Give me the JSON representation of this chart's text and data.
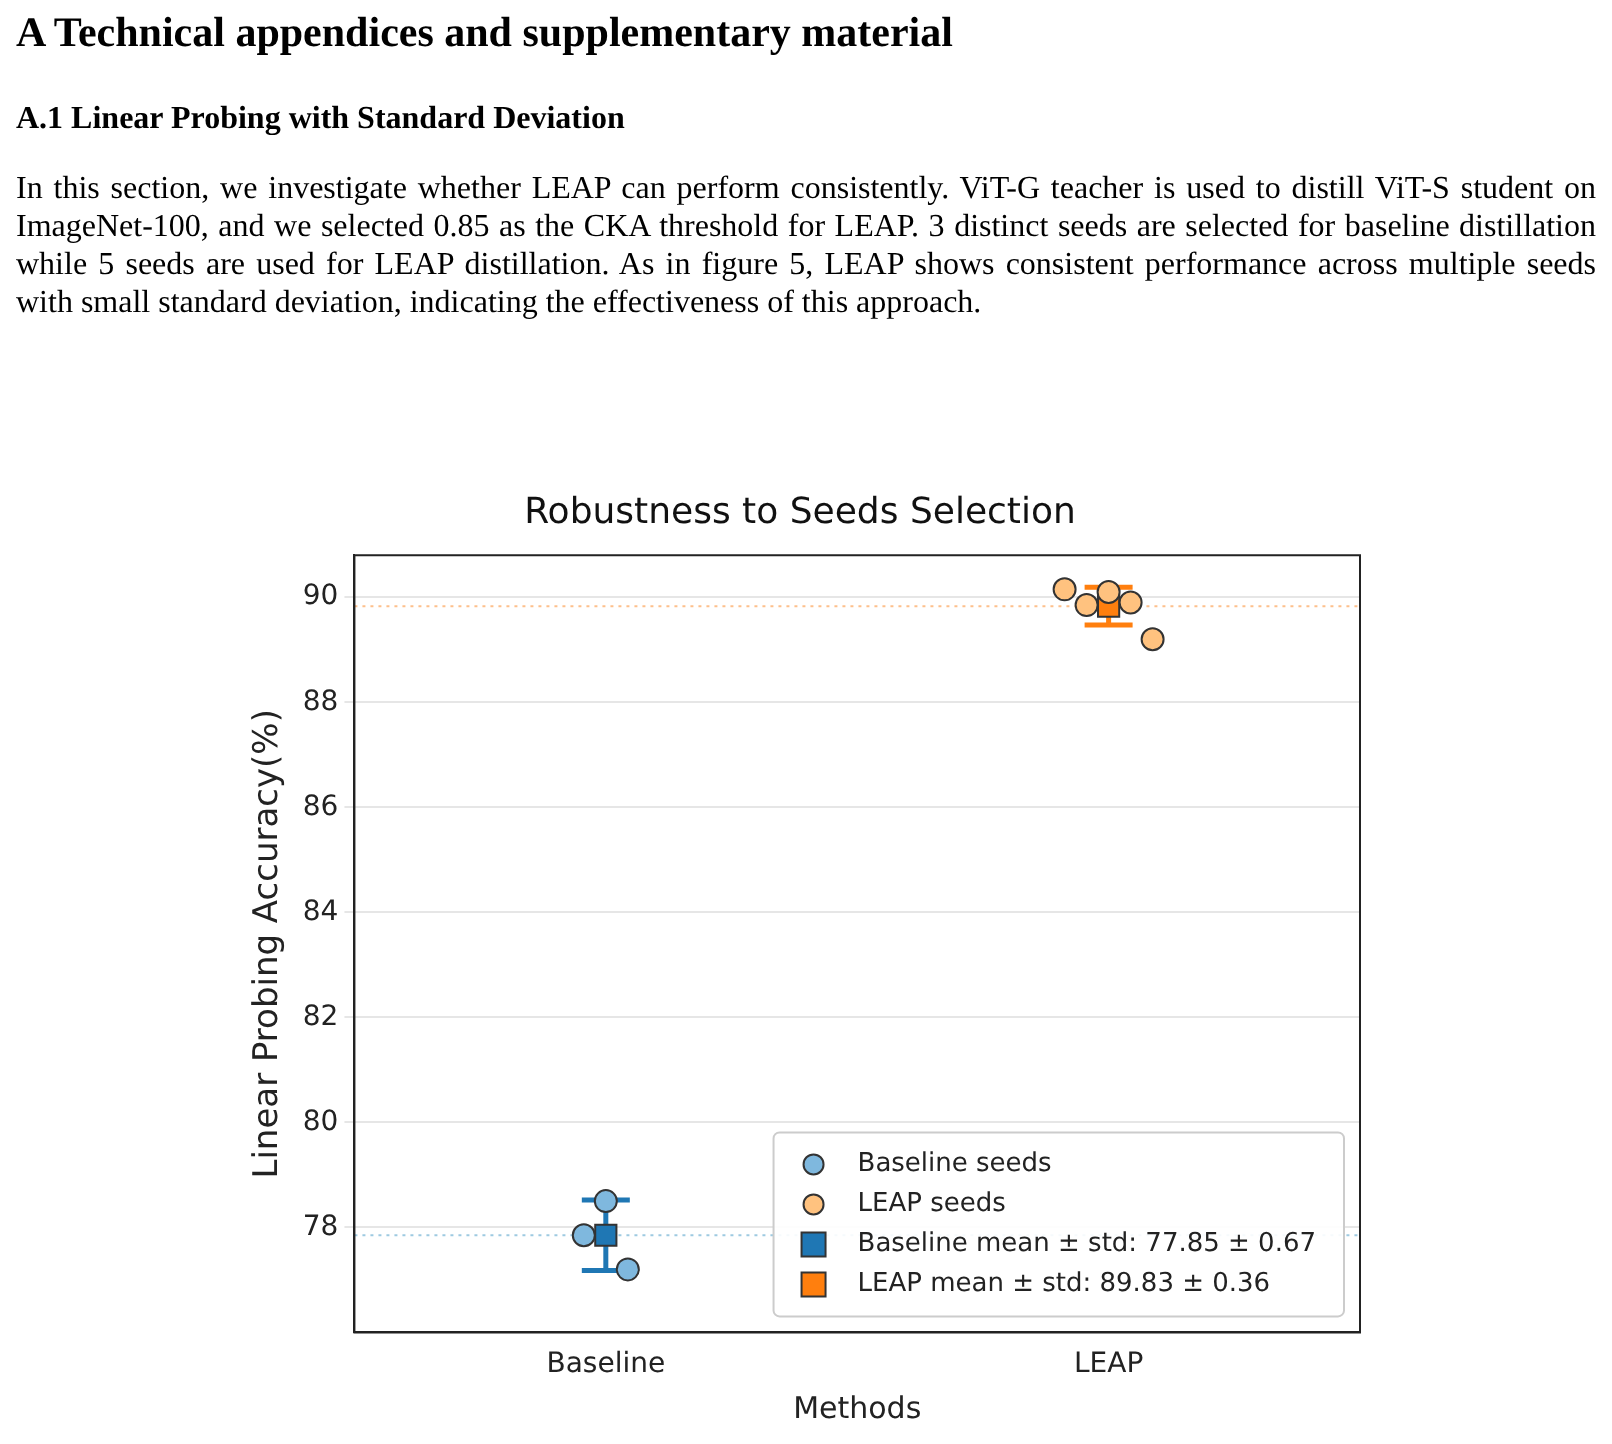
{
  "chart_data": {
    "type": "scatter",
    "title": "Robustness to Seeds Selection",
    "xlabel": "Methods",
    "ylabel": "Linear Probing Accuracy(%)",
    "annotations": [
      "A   Technical appendices and supplementary material",
      "A.1   Linear Probing with Standard Deviation",
      "In this section, we investigate whether LEAP can perform consistently. ViT-G teacher is used to distill ViT-S student on ImageNet-100, and we selected 0.85 as the CKA threshold for LEAP. 3 distinct seeds are selected for baseline distillation while 5 seeds are used for LEAP distillation. As in figure 5, LEAP shows consistent performance across multiple seeds with small standard deviation, indicating the effectiveness of this approach."
    ],
    "categories": [
      "Baseline",
      "LEAP"
    ],
    "ylim": [
      76,
      90.8
    ],
    "yticks": [
      78,
      80,
      82,
      84,
      86,
      88,
      90
    ],
    "grid": "y",
    "legend": "bottom right",
    "series": [
      {
        "name": "Baseline seeds",
        "color": "#7fb8de",
        "marker": "circle",
        "x": [
          "Baseline",
          "Baseline",
          "Baseline"
        ],
        "values": [
          77.85,
          78.5,
          77.2
        ]
      },
      {
        "name": "LEAP seeds",
        "color": "#ffc27f",
        "marker": "circle",
        "x": [
          "LEAP",
          "LEAP",
          "LEAP",
          "LEAP",
          "LEAP"
        ],
        "values": [
          90.15,
          89.85,
          90.1,
          89.9,
          89.2
        ]
      },
      {
        "name": "Baseline mean ± std: 77.85 ± 0.67",
        "color": "#1f77b4",
        "marker": "square",
        "x": [
          "Baseline"
        ],
        "values": [
          77.85
        ],
        "errors": [
          0.67
        ]
      },
      {
        "name": "LEAP mean ± std: 89.83 ± 0.36",
        "color": "#ff7f0e",
        "marker": "square",
        "x": [
          "LEAP"
        ],
        "values": [
          89.83
        ],
        "errors": [
          0.36
        ]
      }
    ],
    "ref_lines": [
      {
        "axis": "y",
        "value": 77.85,
        "label": null,
        "color": "#9ecae1",
        "line_style": "dotted"
      },
      {
        "axis": "y",
        "value": 89.83,
        "label": null,
        "color": "#fdc08c",
        "line_style": "dotted"
      }
    ]
  }
}
